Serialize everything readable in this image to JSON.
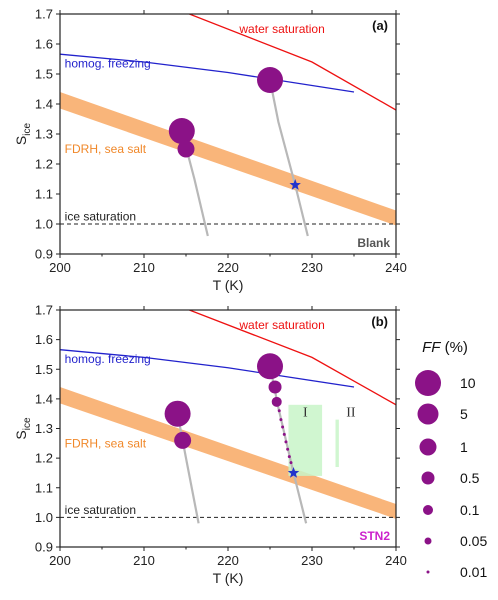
{
  "chart_data": [
    {
      "type": "line",
      "panel_label": "(a)",
      "xlabel": "T (K)",
      "ylabel_main": "S",
      "ylabel_sub": "ice",
      "xlim": [
        200,
        240
      ],
      "ylim": [
        0.9,
        1.7
      ],
      "xticks": [
        "200",
        "210",
        "220",
        "230",
        "240"
      ],
      "yticks": [
        "0.9",
        "1.0",
        "1.1",
        "1.2",
        "1.3",
        "1.4",
        "1.5",
        "1.6",
        "1.7"
      ],
      "tag": "Blank",
      "tag_color": "#555555",
      "annotations": [
        {
          "text": "water saturation",
          "color": "#ee1111",
          "x": 221,
          "y": 1.65
        },
        {
          "text": "homog. freezing",
          "color": "#2222cc",
          "x": 200.2,
          "y": 1.535
        },
        {
          "text": "FDRH, sea salt",
          "color": "#f0882a",
          "x": 200.2,
          "y": 1.25
        },
        {
          "text": "ice saturation",
          "color": "#222222",
          "x": 200.2,
          "y": 1.025
        }
      ],
      "lines": [
        {
          "kind": "water",
          "color": "#ee1111",
          "points": [
            [
              215.4,
              1.7
            ],
            [
              230,
              1.54
            ],
            [
              240,
              1.38
            ]
          ]
        },
        {
          "kind": "homog",
          "color": "#2222cc",
          "points": [
            [
              200,
              1.566
            ],
            [
              210,
              1.54
            ],
            [
              220,
              1.505
            ],
            [
              235,
              1.44
            ]
          ]
        },
        {
          "kind": "icesat",
          "color": "#222222",
          "dashed": true,
          "points": [
            [
              200,
              1.0
            ],
            [
              240,
              1.0
            ]
          ]
        }
      ],
      "band": {
        "color": "#f9b57a",
        "upper": [
          [
            200,
            1.44
          ],
          [
            240,
            1.045
          ]
        ],
        "lower": [
          [
            200,
            1.385
          ],
          [
            240,
            0.995
          ]
        ]
      },
      "trajectories": [
        {
          "points": [
            [
              214.5,
              1.31
            ],
            [
              216,
              1.15
            ],
            [
              217.6,
              0.96
            ]
          ]
        },
        {
          "points": [
            [
              225,
              1.48
            ],
            [
              226,
              1.34
            ],
            [
              228,
              1.13
            ],
            [
              229.5,
              0.96
            ]
          ]
        }
      ],
      "bubbles": [
        {
          "T": 214.5,
          "S": 1.31,
          "ff": 10
        },
        {
          "T": 215.0,
          "S": 1.25,
          "ff": 1
        },
        {
          "T": 225.0,
          "S": 1.48,
          "ff": 10
        }
      ],
      "stars": [
        {
          "T": 228.0,
          "S": 1.13
        }
      ]
    },
    {
      "type": "line",
      "panel_label": "(b)",
      "xlabel": "T (K)",
      "ylabel_main": "S",
      "ylabel_sub": "ice",
      "xlim": [
        200,
        240
      ],
      "ylim": [
        0.9,
        1.7
      ],
      "xticks": [
        "200",
        "210",
        "220",
        "230",
        "240"
      ],
      "yticks": [
        "0.9",
        "1.0",
        "1.1",
        "1.2",
        "1.3",
        "1.4",
        "1.5",
        "1.6",
        "1.7"
      ],
      "tag": "STN2",
      "tag_color": "#cc22cc",
      "annotations": [
        {
          "text": "water saturation",
          "color": "#ee1111",
          "x": 221,
          "y": 1.65
        },
        {
          "text": "homog. freezing",
          "color": "#2222cc",
          "x": 200.2,
          "y": 1.535
        },
        {
          "text": "FDRH, sea salt",
          "color": "#f0882a",
          "x": 200.2,
          "y": 1.25
        },
        {
          "text": "ice saturation",
          "color": "#222222",
          "x": 200.2,
          "y": 1.025
        }
      ],
      "lines": [
        {
          "kind": "water",
          "color": "#ee1111",
          "points": [
            [
              215.4,
              1.7
            ],
            [
              230,
              1.54
            ],
            [
              240,
              1.38
            ]
          ]
        },
        {
          "kind": "homog",
          "color": "#2222cc",
          "points": [
            [
              200,
              1.566
            ],
            [
              210,
              1.54
            ],
            [
              220,
              1.505
            ],
            [
              235,
              1.44
            ]
          ]
        },
        {
          "kind": "icesat",
          "color": "#222222",
          "dashed": true,
          "points": [
            [
              200,
              1.0
            ],
            [
              240,
              1.0
            ]
          ]
        }
      ],
      "band": {
        "color": "#f9b57a",
        "upper": [
          [
            200,
            1.44
          ],
          [
            240,
            1.045
          ]
        ],
        "lower": [
          [
            200,
            1.385
          ],
          [
            240,
            0.995
          ]
        ]
      },
      "trajectories": [
        {
          "points": [
            [
              214.0,
              1.35
            ],
            [
              215.0,
              1.2
            ],
            [
              216.5,
              0.98
            ]
          ]
        },
        {
          "points": [
            [
              225.0,
              1.51
            ],
            [
              226.0,
              1.37
            ],
            [
              227.8,
              1.15
            ],
            [
              229.3,
              0.98
            ]
          ]
        }
      ],
      "bubbles": [
        {
          "T": 214.0,
          "S": 1.35,
          "ff": 10
        },
        {
          "T": 214.6,
          "S": 1.26,
          "ff": 1
        },
        {
          "T": 225.0,
          "S": 1.51,
          "ff": 10
        },
        {
          "T": 225.6,
          "S": 1.44,
          "ff": 0.5
        },
        {
          "T": 225.8,
          "S": 1.39,
          "ff": 0.1
        },
        {
          "T": 226.1,
          "S": 1.36,
          "ff": 0.01
        },
        {
          "T": 226.3,
          "S": 1.33,
          "ff": 0.01
        },
        {
          "T": 226.5,
          "S": 1.305,
          "ff": 0.01
        },
        {
          "T": 226.7,
          "S": 1.28,
          "ff": 0.01
        },
        {
          "T": 226.9,
          "S": 1.255,
          "ff": 0.01
        },
        {
          "T": 227.1,
          "S": 1.23,
          "ff": 0.01
        },
        {
          "T": 227.3,
          "S": 1.205,
          "ff": 0.01
        },
        {
          "T": 227.5,
          "S": 1.185,
          "ff": 0.01
        }
      ],
      "stars": [
        {
          "T": 227.8,
          "S": 1.15
        }
      ],
      "regions": [
        {
          "label": "I",
          "x0": 227.2,
          "x1": 231.2,
          "y0": 1.14,
          "y1": 1.38,
          "color": "#c8f5c8"
        },
        {
          "label": "II",
          "x0": 232.8,
          "x1": 233.2,
          "y0": 1.17,
          "y1": 1.33,
          "color": "#c8f5c8"
        }
      ]
    }
  ],
  "legend": {
    "title": "FF",
    "unit": " (%)",
    "color": "#8b1287",
    "entries": [
      {
        "label": "10",
        "ff": 10
      },
      {
        "label": "5",
        "ff": 5
      },
      {
        "label": "1",
        "ff": 1
      },
      {
        "label": "0.5",
        "ff": 0.5
      },
      {
        "label": "0.1",
        "ff": 0.1
      },
      {
        "label": "0.05",
        "ff": 0.05
      },
      {
        "label": "0.01",
        "ff": 0.01
      }
    ]
  },
  "colors": {
    "bubble": "#8b1287",
    "trajectory": "#b8b8b8",
    "star": "#2233cc",
    "axis": "#222222"
  }
}
